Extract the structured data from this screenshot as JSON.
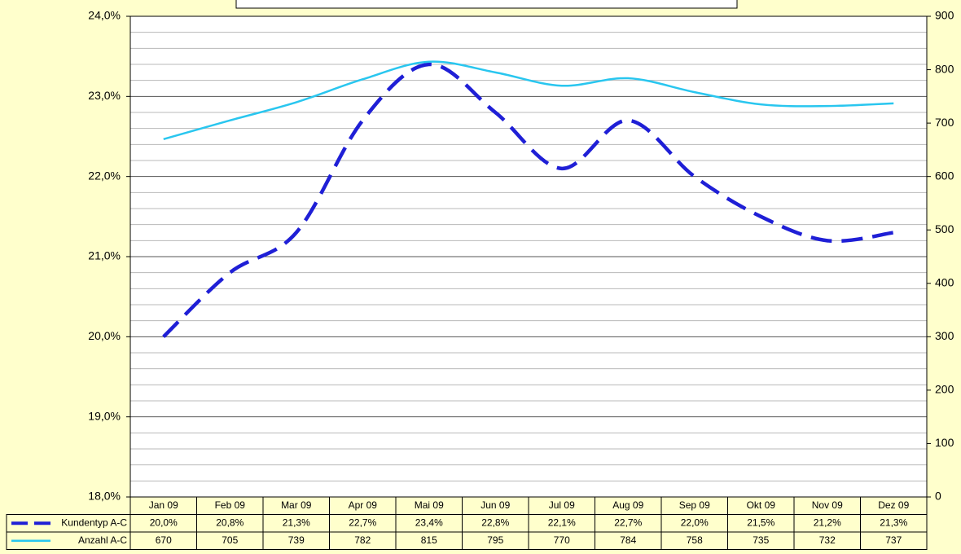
{
  "chart_data": {
    "type": "line",
    "categories": [
      "Jan 09",
      "Feb 09",
      "Mar 09",
      "Apr 09",
      "Mai 09",
      "Jun 09",
      "Jul 09",
      "Aug 09",
      "Sep 09",
      "Okt 09",
      "Nov 09",
      "Dez 09"
    ],
    "series": [
      {
        "name": "Kundentyp A-C",
        "color": "#1f1fd6",
        "dashed": true,
        "values": [
          20.0,
          20.8,
          21.3,
          22.7,
          23.4,
          22.8,
          22.1,
          22.7,
          22.0,
          21.5,
          21.2,
          21.3
        ],
        "value_labels": [
          "20,0%",
          "20,8%",
          "21,3%",
          "22,7%",
          "23,4%",
          "22,8%",
          "22,1%",
          "22,7%",
          "22,0%",
          "21,5%",
          "21,2%",
          "21,3%"
        ]
      },
      {
        "name": "Anzahl A-C",
        "color": "#29c6ef",
        "axis": "y2",
        "values": [
          670,
          705,
          739,
          782,
          815,
          795,
          770,
          784,
          758,
          735,
          732,
          737
        ]
      }
    ],
    "ylim": [
      18,
      24
    ],
    "yticks": [
      {
        "value": 18,
        "label": "18,0%"
      },
      {
        "value": 19,
        "label": "19,0%"
      },
      {
        "value": 20,
        "label": "20,0%"
      },
      {
        "value": 21,
        "label": "21,0%"
      },
      {
        "value": 22,
        "label": "22,0%"
      },
      {
        "value": 23,
        "label": "23,0%"
      },
      {
        "value": 24,
        "label": "24,0%"
      }
    ],
    "y_minor_ticks": [
      18.2,
      18.4,
      18.6,
      18.8,
      19.2,
      19.4,
      19.6,
      19.8,
      20.2,
      20.4,
      20.6,
      20.8,
      21.2,
      21.4,
      21.6,
      21.8,
      22.2,
      22.4,
      22.6,
      22.8,
      23.2,
      23.4,
      23.6,
      23.8
    ],
    "y2lim": [
      0,
      900
    ],
    "y2ticks": [
      0,
      100,
      200,
      300,
      400,
      500,
      600,
      700,
      800,
      900
    ],
    "grid": true,
    "smooth": true
  }
}
